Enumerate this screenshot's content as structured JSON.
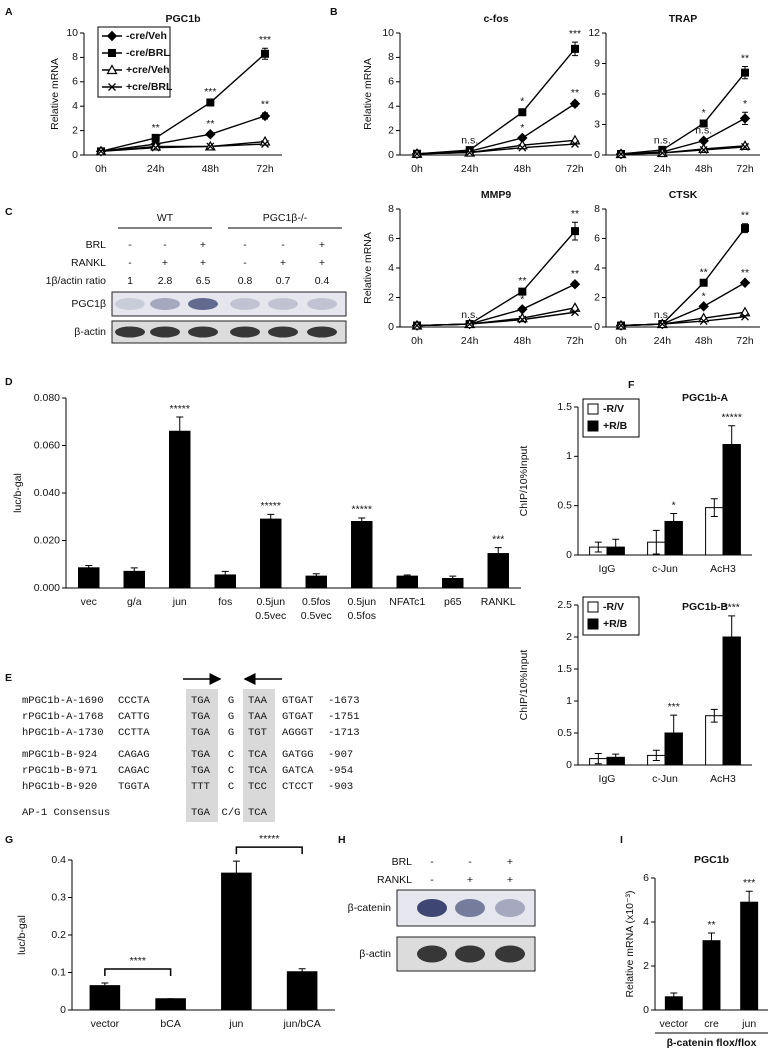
{
  "panel_labels": [
    "A",
    "B",
    "C",
    "D",
    "E",
    "F",
    "G",
    "H",
    "I"
  ],
  "chart_data": [
    {
      "type": "line",
      "title": "PGC1b",
      "ylabel": "Relative mRNA",
      "categories": [
        "0h",
        "24h",
        "48h",
        "72h"
      ],
      "ylim": [
        0,
        10
      ],
      "yticks": [
        0,
        2,
        4,
        6,
        8,
        10
      ],
      "legend": "top-left",
      "series": [
        {
          "name": "-cre/Veh",
          "color": "#000000",
          "marker": "diamond",
          "values": [
            0.3,
            0.9,
            1.7,
            3.2
          ],
          "errors": [
            0.05,
            0.1,
            0.15,
            0.25
          ],
          "stars": [
            null,
            null,
            "**",
            "**"
          ]
        },
        {
          "name": "-cre/BRL",
          "color": "#000000",
          "marker": "square",
          "values": [
            0.3,
            1.4,
            4.3,
            8.3
          ],
          "errors": [
            0.05,
            0.15,
            0.2,
            0.45
          ],
          "stars": [
            null,
            "**",
            "***",
            "***"
          ]
        },
        {
          "name": "+cre/Veh",
          "color": "#000000",
          "marker": "triangle-open",
          "values": [
            0.3,
            0.7,
            0.7,
            1.1
          ]
        },
        {
          "name": "+cre/BRL",
          "color": "#000000",
          "marker": "x",
          "values": [
            0.3,
            0.6,
            0.7,
            0.9
          ]
        }
      ]
    },
    {
      "type": "line",
      "title": "c-fos",
      "ylabel": "Relative mRNA",
      "categories": [
        "0h",
        "24h",
        "48h",
        "72h"
      ],
      "ylim": [
        0,
        10
      ],
      "yticks": [
        0,
        2,
        4,
        6,
        8,
        10
      ],
      "series": [
        {
          "color": "#000000",
          "marker": "diamond",
          "values": [
            0.1,
            0.3,
            1.4,
            4.2
          ],
          "errors": [
            0.05,
            0.1,
            0.15,
            0.2
          ],
          "stars": [
            null,
            null,
            "*",
            "**"
          ]
        },
        {
          "color": "#000000",
          "marker": "square",
          "values": [
            0.1,
            0.4,
            3.5,
            8.7
          ],
          "errors": [
            0.05,
            0.1,
            0.2,
            0.55
          ],
          "stars": [
            null,
            "n.s.",
            "*",
            "***"
          ]
        },
        {
          "color": "#000000",
          "marker": "triangle-open",
          "values": [
            0.1,
            0.2,
            0.8,
            1.2
          ]
        },
        {
          "color": "#000000",
          "marker": "x",
          "values": [
            0.1,
            0.2,
            0.6,
            0.9
          ]
        }
      ]
    },
    {
      "type": "line",
      "title": "TRAP",
      "categories": [
        "0h",
        "24h",
        "48h",
        "72h"
      ],
      "ylim": [
        0,
        12
      ],
      "yticks": [
        0,
        3,
        6,
        9,
        12
      ],
      "series": [
        {
          "color": "#000000",
          "marker": "diamond",
          "values": [
            0.1,
            0.3,
            1.4,
            3.6
          ],
          "errors": [
            0.05,
            0.1,
            0.2,
            0.6
          ],
          "stars": [
            null,
            null,
            "n.s.",
            "*"
          ]
        },
        {
          "color": "#000000",
          "marker": "square",
          "values": [
            0.1,
            0.5,
            3.1,
            8.1
          ],
          "errors": [
            0.05,
            0.1,
            0.2,
            0.6
          ],
          "stars": [
            null,
            "n.s.",
            "*",
            "**"
          ]
        },
        {
          "color": "#000000",
          "marker": "triangle-open",
          "values": [
            0.1,
            0.2,
            0.6,
            0.9
          ]
        },
        {
          "color": "#000000",
          "marker": "x",
          "values": [
            0.1,
            0.2,
            0.5,
            0.8
          ]
        }
      ]
    },
    {
      "type": "line",
      "title": "MMP9",
      "ylabel": "Relative mRNA",
      "categories": [
        "0h",
        "24h",
        "48h",
        "72h"
      ],
      "ylim": [
        0,
        8
      ],
      "yticks": [
        0,
        2,
        4,
        6,
        8
      ],
      "series": [
        {
          "color": "#000000",
          "marker": "diamond",
          "values": [
            0.1,
            0.2,
            1.2,
            2.9
          ],
          "errors": [
            0.05,
            0.05,
            0.1,
            0.15
          ],
          "stars": [
            null,
            null,
            "*",
            "**"
          ]
        },
        {
          "color": "#000000",
          "marker": "square",
          "values": [
            0.1,
            0.2,
            2.4,
            6.5
          ],
          "errors": [
            0.05,
            0.05,
            0.15,
            0.6
          ],
          "stars": [
            null,
            "n.s.",
            "**",
            "**"
          ]
        },
        {
          "color": "#000000",
          "marker": "triangle-open",
          "values": [
            0.1,
            0.2,
            0.6,
            1.3
          ]
        },
        {
          "color": "#000000",
          "marker": "x",
          "values": [
            0.1,
            0.2,
            0.5,
            1.0
          ]
        }
      ]
    },
    {
      "type": "line",
      "title": "CTSK",
      "categories": [
        "0h",
        "24h",
        "48h",
        "72h"
      ],
      "ylim": [
        0,
        8
      ],
      "yticks": [
        0,
        2,
        4,
        6,
        8
      ],
      "series": [
        {
          "color": "#000000",
          "marker": "diamond",
          "values": [
            0.1,
            0.2,
            1.4,
            3.0
          ],
          "errors": [
            0.05,
            0.05,
            0.1,
            0.1
          ],
          "stars": [
            null,
            null,
            "*",
            "**"
          ]
        },
        {
          "color": "#000000",
          "marker": "square",
          "values": [
            0.1,
            0.2,
            3.0,
            6.7
          ],
          "errors": [
            0.05,
            0.05,
            0.15,
            0.3
          ],
          "stars": [
            null,
            "n.s.",
            "**",
            "**"
          ]
        },
        {
          "color": "#000000",
          "marker": "triangle-open",
          "values": [
            0.1,
            0.2,
            0.6,
            1.0
          ]
        },
        {
          "color": "#000000",
          "marker": "x",
          "values": [
            0.1,
            0.2,
            0.4,
            0.7
          ]
        }
      ]
    },
    {
      "type": "bar",
      "ylabel": "luc/b-gal",
      "categories": [
        "vec",
        "g/a",
        "jun",
        "fos",
        [
          "0.5jun",
          "0.5vec"
        ],
        [
          "0.5fos",
          "0.5vec"
        ],
        [
          "0.5jun",
          "0.5fos"
        ],
        "NFATc1",
        "p65",
        "RANKL"
      ],
      "values": [
        0.0085,
        0.007,
        0.066,
        0.0055,
        0.029,
        0.005,
        0.028,
        0.005,
        0.004,
        0.0145
      ],
      "errors": [
        0.001,
        0.0015,
        0.006,
        0.0015,
        0.002,
        0.001,
        0.0015,
        0.0005,
        0.001,
        0.0025
      ],
      "stars": [
        null,
        null,
        "*****",
        null,
        "*****",
        null,
        "*****",
        null,
        null,
        "***"
      ],
      "color": "#000000",
      "ylim": [
        0,
        0.08
      ],
      "yticks": [
        {
          "value": 0,
          "label": "0.000"
        },
        {
          "value": 0.02,
          "label": "0.020"
        },
        {
          "value": 0.04,
          "label": "0.040"
        },
        {
          "value": 0.06,
          "label": "0.060"
        },
        {
          "value": 0.08,
          "label": "0.080"
        }
      ]
    },
    {
      "type": "bar",
      "title": "PGC1b-A",
      "ylabel": "ChIP/10%Input",
      "categories": [
        "IgG",
        "c-Jun",
        "AcH3"
      ],
      "ylim": [
        0,
        1.5
      ],
      "yticks": [
        0,
        0.5,
        1,
        1.5
      ],
      "legend": "top-left",
      "series": [
        {
          "name": "-R/V",
          "color": "#ffffff",
          "values": [
            0.08,
            0.13,
            0.48
          ],
          "errors": [
            0.05,
            0.12,
            0.09
          ]
        },
        {
          "name": "+R/B",
          "color": "#000000",
          "values": [
            0.08,
            0.34,
            1.12
          ],
          "errors": [
            0.08,
            0.08,
            0.19
          ],
          "stars": [
            null,
            "*",
            "*****"
          ]
        }
      ]
    },
    {
      "type": "bar",
      "title": "PGC1b-B",
      "ylabel": "ChIP/10%Input",
      "categories": [
        "IgG",
        "c-Jun",
        "AcH3"
      ],
      "ylim": [
        0,
        2.5
      ],
      "yticks": [
        0,
        0.5,
        1,
        1.5,
        2,
        2.5
      ],
      "legend": "top-left",
      "series": [
        {
          "name": "-R/V",
          "color": "#ffffff",
          "values": [
            0.1,
            0.15,
            0.77
          ],
          "errors": [
            0.08,
            0.08,
            0.1
          ]
        },
        {
          "name": "+R/B",
          "color": "#000000",
          "values": [
            0.12,
            0.5,
            2.0
          ],
          "errors": [
            0.05,
            0.28,
            0.33
          ],
          "stars": [
            null,
            "***",
            "****"
          ]
        }
      ]
    },
    {
      "type": "bar",
      "ylabel": "luc/b-gal",
      "categories": [
        "vector",
        "bCA",
        "jun",
        "jun/bCA"
      ],
      "values": [
        0.065,
        0.03,
        0.365,
        0.102
      ],
      "errors": [
        0.007,
        0,
        0.032,
        0.008
      ],
      "color": "#000000",
      "ylim": [
        0,
        0.4
      ],
      "yticks": [
        0,
        0.1,
        0.2,
        0.3,
        0.4
      ],
      "comparisons": [
        {
          "pair": [
            0,
            1
          ],
          "label": "****"
        },
        {
          "pair": [
            2,
            3
          ],
          "label": "*****"
        }
      ]
    },
    {
      "type": "bar",
      "title": "PGC1b",
      "ylabel": "Relative mRNA (x10⁻³)",
      "xlabel": "β-catenin flox/flox",
      "categories": [
        "vector",
        "cre",
        "jun"
      ],
      "values": [
        0.6,
        3.15,
        4.9
      ],
      "errors": [
        0.17,
        0.35,
        0.5
      ],
      "stars": [
        null,
        "**",
        "***"
      ],
      "color": "#000000",
      "ylim": [
        0,
        6
      ],
      "yticks": [
        0,
        2,
        4,
        6
      ]
    }
  ],
  "blot_c": {
    "groups": [
      "WT",
      "PGC1β-/-"
    ],
    "rows": [
      {
        "label": "BRL",
        "cells": [
          "-",
          "-",
          "+",
          "-",
          "-",
          "+"
        ]
      },
      {
        "label": "RANKL",
        "cells": [
          "-",
          "+",
          "+",
          "-",
          "+",
          "+"
        ]
      },
      {
        "label": "1β/actin ratio",
        "cells": [
          1,
          2.8,
          6.5,
          0.8,
          0.7,
          0.4
        ]
      }
    ],
    "bands": [
      "PGC1β",
      "β-actin"
    ]
  },
  "alignment": {
    "rows": [
      {
        "name": "mPGC1b-A",
        "start": -1690,
        "seq": [
          "CCCTA",
          "TGA",
          "G",
          "TAA",
          "GTGAT"
        ],
        "end": -1673
      },
      {
        "name": "rPGC1b-A",
        "start": -1768,
        "seq": [
          "CATTG",
          "TGA",
          "G",
          "TAA",
          "GTGAT"
        ],
        "end": -1751
      },
      {
        "name": "hPGC1b-A",
        "start": -1730,
        "seq": [
          "CCTTA",
          "TGA",
          "G",
          "TGT",
          "AGGGT"
        ],
        "end": -1713
      },
      {
        "name": "mPGC1b-B",
        "start": -924,
        "seq": [
          "CAGAG",
          "TGA",
          "C",
          "TCA",
          "GATGG"
        ],
        "end": -907
      },
      {
        "name": "rPGC1b-B",
        "start": -971,
        "seq": [
          "CAGAC",
          "TGA",
          "C",
          "TCA",
          "GATCA"
        ],
        "end": -954
      },
      {
        "name": "hPGC1b-B",
        "start": -920,
        "seq": [
          "TGGTA",
          "TTT",
          "C",
          "TCC",
          "CTCCT"
        ],
        "end": -903
      }
    ],
    "consensus": {
      "label": "AP-1 Consensus",
      "seq": [
        "TGA",
        "C/G",
        "TCA"
      ]
    }
  },
  "blot_h": {
    "rows": [
      {
        "label": "BRL",
        "cells": [
          "-",
          "-",
          "+"
        ]
      },
      {
        "label": "RANKL",
        "cells": [
          "-",
          "+",
          "+"
        ]
      }
    ],
    "bands": [
      "β-catenin",
      "β-actin"
    ]
  }
}
